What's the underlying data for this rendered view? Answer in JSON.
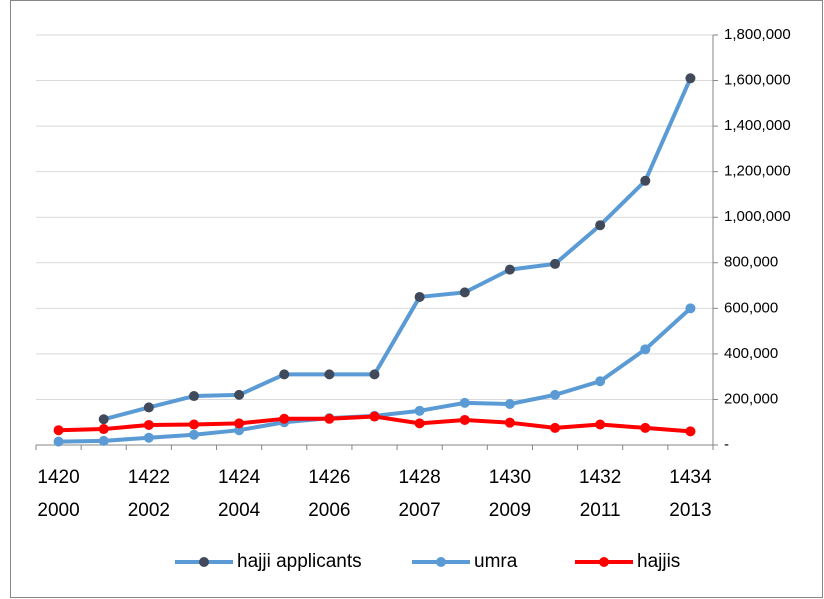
{
  "chart_data": {
    "type": "line",
    "categories": [
      "1420",
      null,
      "1422",
      null,
      "1424",
      null,
      "1426",
      null,
      "1428",
      null,
      "1430",
      null,
      "1432",
      null,
      "1434"
    ],
    "category_years": [
      "2000",
      null,
      "2002",
      null,
      "2004",
      null,
      "2006",
      null,
      "2007",
      null,
      "2009",
      null,
      "2011",
      null,
      "2013"
    ],
    "series": [
      {
        "name": "hajji applicants",
        "color": "#5b9bd5",
        "marker_color": "#404a5a",
        "values": [
          null,
          113000,
          165000,
          215000,
          220000,
          310000,
          310000,
          310000,
          650000,
          670000,
          770000,
          795000,
          965000,
          1160000,
          1610000
        ]
      },
      {
        "name": "umra",
        "color": "#5b9bd5",
        "marker_color": "#5b9bd5",
        "values": [
          15000,
          18000,
          32000,
          45000,
          65000,
          100000,
          118000,
          128000,
          150000,
          185000,
          180000,
          220000,
          280000,
          420000,
          600000
        ]
      },
      {
        "name": "hajjis",
        "color": "#ff0000",
        "marker_color": "#ff0000",
        "values": [
          65000,
          70000,
          88000,
          90000,
          95000,
          115000,
          115000,
          125000,
          95000,
          110000,
          98000,
          75000,
          90000,
          75000,
          60000
        ]
      }
    ],
    "ylim": [
      0,
      1800000
    ],
    "yticks": [
      {
        "value": 0,
        "label": "-"
      },
      {
        "value": 200000,
        "label": "200,000"
      },
      {
        "value": 400000,
        "label": "400,000"
      },
      {
        "value": 600000,
        "label": "600,000"
      },
      {
        "value": 800000,
        "label": "800,000"
      },
      {
        "value": 1000000,
        "label": "1,000,000"
      },
      {
        "value": 1200000,
        "label": "1,200,000"
      },
      {
        "value": 1400000,
        "label": "1,400,000"
      },
      {
        "value": 1600000,
        "label": "1,600,000"
      },
      {
        "value": 1800000,
        "label": "1,800,000"
      }
    ],
    "grid": true,
    "legend": "bottom"
  }
}
